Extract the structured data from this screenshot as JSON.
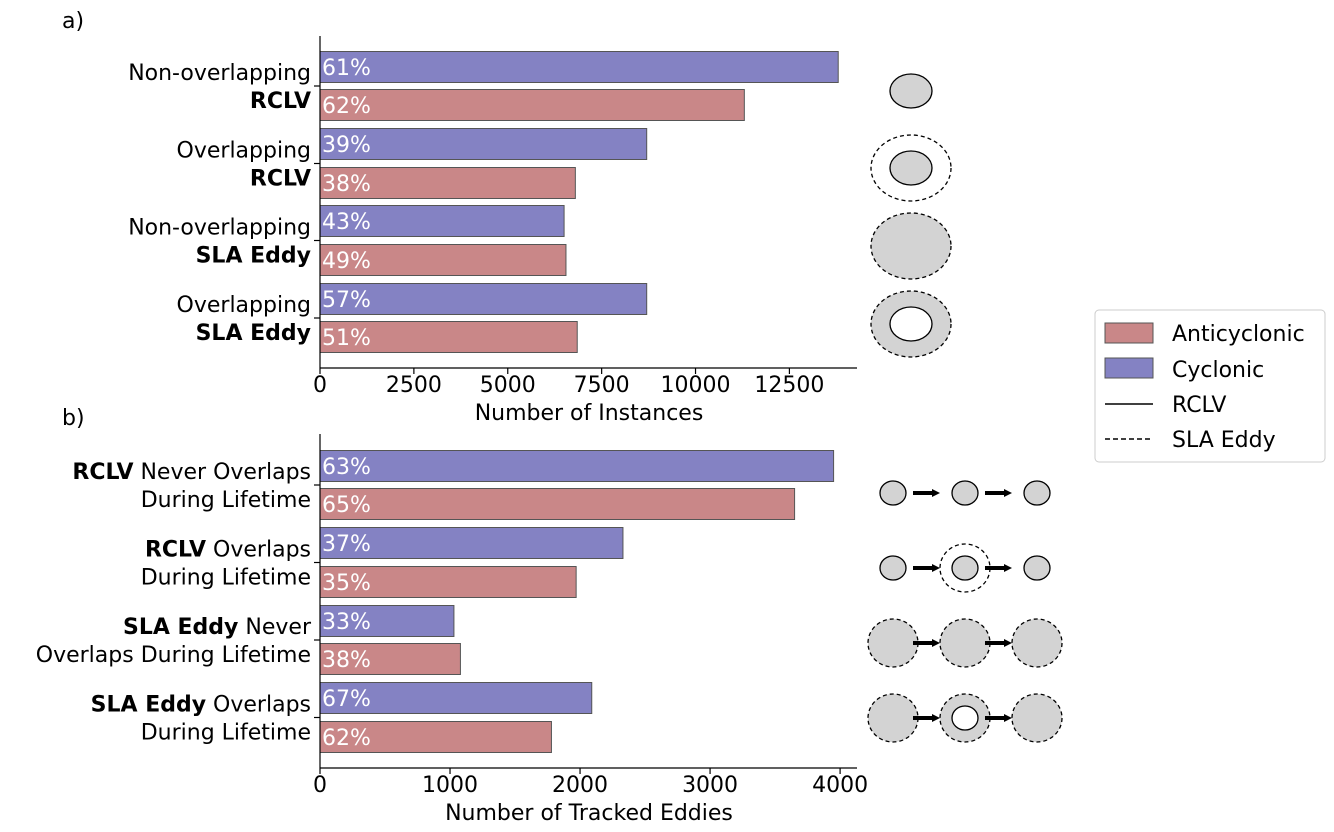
{
  "chart_data": [
    {
      "type": "bar",
      "orientation": "horizontal",
      "panel_label": "a)",
      "xlabel": "Number of Instances",
      "xticks": [
        0,
        2500,
        5000,
        7500,
        10000,
        12500
      ],
      "xlim": [
        0,
        14300
      ],
      "categories": [
        {
          "line1": [
            {
              "text": "Non-overlapping",
              "bold": false
            }
          ],
          "line2": [
            {
              "text": "RCLV",
              "bold": true
            }
          ]
        },
        {
          "line1": [
            {
              "text": "Overlapping",
              "bold": false
            }
          ],
          "line2": [
            {
              "text": "RCLV",
              "bold": true
            }
          ]
        },
        {
          "line1": [
            {
              "text": "Non-overlapping",
              "bold": false
            }
          ],
          "line2": [
            {
              "text": "SLA Eddy",
              "bold": true
            }
          ]
        },
        {
          "line1": [
            {
              "text": "Overlapping",
              "bold": false
            }
          ],
          "line2": [
            {
              "text": "SLA Eddy",
              "bold": true
            }
          ]
        }
      ],
      "series": [
        {
          "name": "Cyclonic",
          "color": "#8482c3",
          "values": [
            13800,
            8700,
            6500,
            8700
          ],
          "labels": [
            "61%",
            "39%",
            "43%",
            "57%"
          ]
        },
        {
          "name": "Anticyclonic",
          "color": "#c98788",
          "values": [
            11300,
            6800,
            6550,
            6850
          ],
          "labels": [
            "62%",
            "38%",
            "49%",
            "51%"
          ]
        }
      ]
    },
    {
      "type": "bar",
      "orientation": "horizontal",
      "panel_label": "b)",
      "xlabel": "Number of Tracked Eddies",
      "xticks": [
        0,
        1000,
        2000,
        3000,
        4000
      ],
      "xlim": [
        0,
        4130
      ],
      "categories": [
        {
          "line1": [
            {
              "text": "RCLV",
              "bold": true
            },
            {
              "text": " Never Overlaps",
              "bold": false
            }
          ],
          "line2": [
            {
              "text": "During Lifetime",
              "bold": false
            }
          ]
        },
        {
          "line1": [
            {
              "text": "RCLV",
              "bold": true
            },
            {
              "text": " Overlaps",
              "bold": false
            }
          ],
          "line2": [
            {
              "text": "During Lifetime",
              "bold": false
            }
          ]
        },
        {
          "line1": [
            {
              "text": "SLA Eddy",
              "bold": true
            },
            {
              "text": " Never",
              "bold": false
            }
          ],
          "line2": [
            {
              "text": "Overlaps During Lifetime",
              "bold": false
            }
          ]
        },
        {
          "line1": [
            {
              "text": "SLA Eddy",
              "bold": true
            },
            {
              "text": " Overlaps",
              "bold": false
            }
          ],
          "line2": [
            {
              "text": "During Lifetime",
              "bold": false
            }
          ]
        }
      ],
      "series": [
        {
          "name": "Cyclonic",
          "color": "#8482c3",
          "values": [
            3950,
            2330,
            1030,
            2090
          ],
          "labels": [
            "63%",
            "37%",
            "33%",
            "67%"
          ]
        },
        {
          "name": "Anticyclonic",
          "color": "#c98788",
          "values": [
            3650,
            1970,
            1080,
            1780
          ],
          "labels": [
            "65%",
            "35%",
            "38%",
            "62%"
          ]
        }
      ]
    }
  ],
  "legend": {
    "placement": "right",
    "entries": [
      {
        "label": "Anticyclonic",
        "kind": "patch",
        "color": "#c98788"
      },
      {
        "label": "Cyclonic",
        "kind": "patch",
        "color": "#8482c3"
      },
      {
        "label": "RCLV",
        "kind": "line-solid"
      },
      {
        "label": "SLA Eddy",
        "kind": "line-dashed"
      }
    ]
  },
  "icons": {
    "panel_a": [
      "rclv-solid-icon",
      "rclv-inside-sla-icon",
      "sla-dashed-icon",
      "sla-with-rclv-inside-icon"
    ],
    "panel_b": [
      "rclv-never-overlaps-track-icon",
      "rclv-overlaps-track-icon",
      "sla-never-overlaps-track-icon",
      "sla-overlaps-track-icon"
    ],
    "fill_color": "#d3d3d3"
  }
}
